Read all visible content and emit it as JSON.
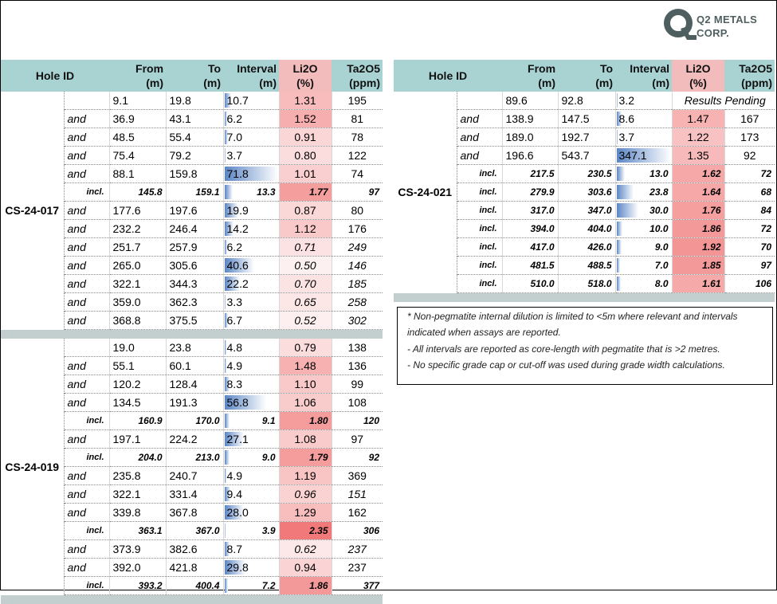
{
  "logo": {
    "name_line1": "Q2 METALS",
    "name_line2": "CORP."
  },
  "headers": {
    "hole_id": "Hole ID",
    "from": [
      "From",
      "(m)"
    ],
    "to": [
      "To",
      "(m)"
    ],
    "interval": [
      "Interval",
      "(m)"
    ],
    "li2o": [
      "Li2O",
      "(%)"
    ],
    "ta2o5": [
      "Ta2O5",
      "(ppm)"
    ]
  },
  "colors": {
    "header_teal": "#a9d3d3",
    "header_pink": "#f2bcbc",
    "separator": "#c3cece",
    "bar_blue": "#5b86c5"
  },
  "max_interval": 71.8,
  "left_table": {
    "holes": [
      {
        "id": "CS-24-017",
        "rows": [
          {
            "label": "",
            "from": "9.1",
            "to": "19.8",
            "interval": "10.7",
            "li2o": "1.31",
            "ta2o5": "195"
          },
          {
            "label": "and",
            "from": "36.9",
            "to": "43.1",
            "interval": "6.2",
            "li2o": "1.52",
            "ta2o5": "81"
          },
          {
            "label": "and",
            "from": "48.5",
            "to": "55.4",
            "interval": "7.0",
            "li2o": "0.91",
            "ta2o5": "78"
          },
          {
            "label": "and",
            "from": "75.4",
            "to": "79.2",
            "interval": "3.7",
            "li2o": "0.80",
            "ta2o5": "122"
          },
          {
            "label": "and",
            "from": "88.1",
            "to": "159.8",
            "interval": "71.8",
            "li2o": "1.01",
            "ta2o5": "74"
          },
          {
            "label": "incl.",
            "from": "145.8",
            "to": "159.1",
            "interval": "13.3",
            "li2o": "1.77",
            "ta2o5": "97"
          },
          {
            "label": "and",
            "from": "177.6",
            "to": "197.6",
            "interval": "19.9",
            "li2o": "0.87",
            "ta2o5": "80"
          },
          {
            "label": "and",
            "from": "232.2",
            "to": "246.4",
            "interval": "14.2",
            "li2o": "1.12",
            "ta2o5": "176"
          },
          {
            "label": "and",
            "from": "251.7",
            "to": "257.9",
            "interval": "6.2",
            "li2o": "0.71",
            "ta2o5": "249",
            "it": true
          },
          {
            "label": "and",
            "from": "265.0",
            "to": "305.6",
            "interval": "40.6",
            "li2o": "0.50",
            "ta2o5": "146",
            "it": true
          },
          {
            "label": "and",
            "from": "322.1",
            "to": "344.3",
            "interval": "22.2",
            "li2o": "0.70",
            "ta2o5": "185",
            "it": true
          },
          {
            "label": "and",
            "from": "359.0",
            "to": "362.3",
            "interval": "3.3",
            "li2o": "0.65",
            "ta2o5": "258",
            "it": true
          },
          {
            "label": "and",
            "from": "368.8",
            "to": "375.5",
            "interval": "6.7",
            "li2o": "0.52",
            "ta2o5": "302",
            "it": true
          }
        ]
      },
      {
        "id": "CS-24-019",
        "rows": [
          {
            "label": "",
            "from": "19.0",
            "to": "23.8",
            "interval": "4.8",
            "li2o": "0.79",
            "ta2o5": "138"
          },
          {
            "label": "and",
            "from": "55.1",
            "to": "60.1",
            "interval": "4.9",
            "li2o": "1.48",
            "ta2o5": "136"
          },
          {
            "label": "and",
            "from": "120.2",
            "to": "128.4",
            "interval": "8.3",
            "li2o": "1.10",
            "ta2o5": "99"
          },
          {
            "label": "and",
            "from": "134.5",
            "to": "191.3",
            "interval": "56.8",
            "li2o": "1.06",
            "ta2o5": "108"
          },
          {
            "label": "incl.",
            "from": "160.9",
            "to": "170.0",
            "interval": "9.1",
            "li2o": "1.80",
            "ta2o5": "120"
          },
          {
            "label": "and",
            "from": "197.1",
            "to": "224.2",
            "interval": "27.1",
            "li2o": "1.08",
            "ta2o5": "97"
          },
          {
            "label": "incl.",
            "from": "204.0",
            "to": "213.0",
            "interval": "9.0",
            "li2o": "1.79",
            "ta2o5": "92"
          },
          {
            "label": "and",
            "from": "235.8",
            "to": "240.7",
            "interval": "4.9",
            "li2o": "1.19",
            "ta2o5": "369"
          },
          {
            "label": "and",
            "from": "322.1",
            "to": "331.4",
            "interval": "9.4",
            "li2o": "0.96",
            "ta2o5": "151",
            "it": true
          },
          {
            "label": "and",
            "from": "339.8",
            "to": "367.8",
            "interval": "28.0",
            "li2o": "1.29",
            "ta2o5": "162"
          },
          {
            "label": "incl.",
            "from": "363.1",
            "to": "367.0",
            "interval": "3.9",
            "li2o": "2.35",
            "ta2o5": "306"
          },
          {
            "label": "and",
            "from": "373.9",
            "to": "382.6",
            "interval": "8.7",
            "li2o": "0.62",
            "ta2o5": "237",
            "it": true
          },
          {
            "label": "and",
            "from": "392.0",
            "to": "421.8",
            "interval": "29.8",
            "li2o": "0.94",
            "ta2o5": "237"
          },
          {
            "label": "incl.",
            "from": "393.2",
            "to": "400.4",
            "interval": "7.2",
            "li2o": "1.86",
            "ta2o5": "377"
          }
        ]
      }
    ]
  },
  "right_table": {
    "holes": [
      {
        "id": "CS-24-021",
        "rows": [
          {
            "label": "",
            "from": "89.6",
            "to": "92.8",
            "interval": "3.2",
            "pending": "Results Pending"
          },
          {
            "label": "and",
            "from": "138.9",
            "to": "147.5",
            "interval": "8.6",
            "li2o": "1.47",
            "ta2o5": "167"
          },
          {
            "label": "and",
            "from": "189.0",
            "to": "192.7",
            "interval": "3.7",
            "li2o": "1.22",
            "ta2o5": "173"
          },
          {
            "label": "and",
            "from": "196.6",
            "to": "543.7",
            "interval": "347.1",
            "li2o": "1.35",
            "ta2o5": "92"
          },
          {
            "label": "incl.",
            "from": "217.5",
            "to": "230.5",
            "interval": "13.0",
            "li2o": "1.62",
            "ta2o5": "72"
          },
          {
            "label": "incl.",
            "from": "279.9",
            "to": "303.6",
            "interval": "23.8",
            "li2o": "1.64",
            "ta2o5": "68"
          },
          {
            "label": "incl.",
            "from": "317.0",
            "to": "347.0",
            "interval": "30.0",
            "li2o": "1.76",
            "ta2o5": "84"
          },
          {
            "label": "incl.",
            "from": "394.0",
            "to": "404.0",
            "interval": "10.0",
            "li2o": "1.86",
            "ta2o5": "72"
          },
          {
            "label": "incl.",
            "from": "417.0",
            "to": "426.0",
            "interval": "9.0",
            "li2o": "1.92",
            "ta2o5": "70"
          },
          {
            "label": "incl.",
            "from": "481.5",
            "to": "488.5",
            "interval": "7.0",
            "li2o": "1.85",
            "ta2o5": "97"
          },
          {
            "label": "incl.",
            "from": "510.0",
            "to": "518.0",
            "interval": "8.0",
            "li2o": "1.61",
            "ta2o5": "106"
          }
        ]
      }
    ]
  },
  "notes": [
    "* Non-pegmatite internal dilution is limited to <5m where relevant and intervals",
    "indicated when assays are reported.",
    "- All intervals are reported as core-length with pegmatite that is >2 metres.",
    "- No specific grade cap or cut-off was used during grade width calculations."
  ]
}
